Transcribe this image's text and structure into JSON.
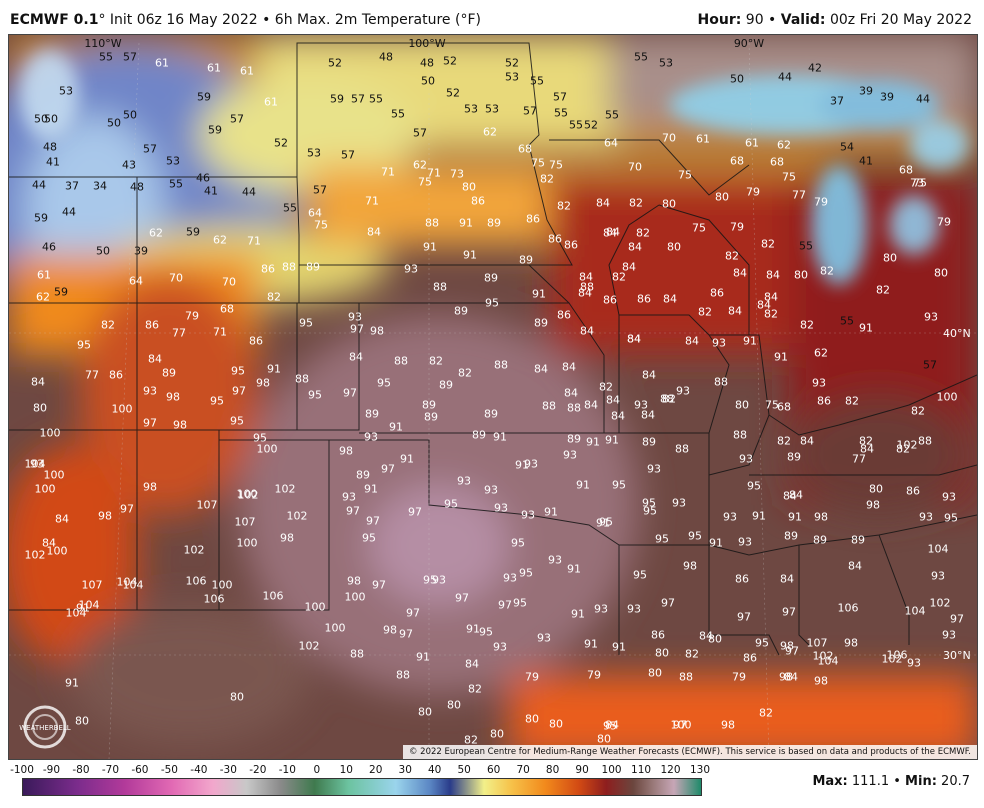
{
  "header": {
    "model": "ECMWF 0.1",
    "init": "° Init 06z 16 May 2022 • 6h Max. 2m Temperature (°F)",
    "hour_label": "Hour:",
    "hour_value": "90",
    "valid_label": "Valid:",
    "valid_value": "00z Fri 20 May 2022"
  },
  "map": {
    "longitudes": [
      "110°W",
      "100°W",
      "90°W"
    ],
    "latitudes": [
      "40°N",
      "30°N"
    ],
    "credit": "© 2022 European Centre for Medium-Range Weather Forecasts (ECMWF). This service is based on data and products of the ECMWF.",
    "logo_text": "WEATHERBELL",
    "temperature_labels": [
      {
        "t": "55"
      },
      {
        "t": "57"
      },
      {
        "t": "61"
      },
      {
        "t": "61"
      },
      {
        "t": "61"
      },
      {
        "t": "59"
      },
      {
        "t": "57"
      },
      {
        "t": "52"
      },
      {
        "t": "48"
      },
      {
        "t": "48"
      },
      {
        "t": "52"
      },
      {
        "t": "52"
      },
      {
        "t": "53"
      },
      {
        "t": "55"
      },
      {
        "t": "55"
      },
      {
        "t": "53"
      },
      {
        "t": "53"
      },
      {
        "t": "50"
      },
      {
        "t": "50"
      },
      {
        "t": "59"
      },
      {
        "t": "61"
      },
      {
        "t": "57"
      },
      {
        "t": "55"
      },
      {
        "t": "50"
      },
      {
        "t": "52"
      },
      {
        "t": "53"
      },
      {
        "t": "53"
      },
      {
        "t": "57"
      },
      {
        "t": "55"
      },
      {
        "t": "52"
      },
      {
        "t": "55"
      },
      {
        "t": "50"
      },
      {
        "t": "44"
      },
      {
        "t": "42"
      },
      {
        "t": "39"
      },
      {
        "t": "39"
      },
      {
        "t": "37"
      },
      {
        "t": "44"
      },
      {
        "t": "50"
      },
      {
        "t": "50"
      },
      {
        "t": "48"
      },
      {
        "t": "59"
      },
      {
        "t": "52"
      },
      {
        "t": "55"
      },
      {
        "t": "57"
      },
      {
        "t": "62"
      },
      {
        "t": "62"
      },
      {
        "t": "57"
      },
      {
        "t": "55"
      },
      {
        "t": "64"
      },
      {
        "t": "57"
      },
      {
        "t": "53"
      },
      {
        "t": "41"
      },
      {
        "t": "43"
      },
      {
        "t": "46"
      },
      {
        "t": "53"
      },
      {
        "t": "57"
      },
      {
        "t": "68"
      },
      {
        "t": "75"
      },
      {
        "t": "75"
      },
      {
        "t": "70"
      },
      {
        "t": "61"
      },
      {
        "t": "61"
      },
      {
        "t": "62"
      },
      {
        "t": "70"
      },
      {
        "t": "54"
      },
      {
        "t": "41"
      },
      {
        "t": "68"
      },
      {
        "t": "75"
      },
      {
        "t": "44"
      },
      {
        "t": "37"
      },
      {
        "t": "34"
      },
      {
        "t": "48"
      },
      {
        "t": "55"
      },
      {
        "t": "41"
      },
      {
        "t": "44"
      },
      {
        "t": "57"
      },
      {
        "t": "71"
      },
      {
        "t": "75"
      },
      {
        "t": "71"
      },
      {
        "t": "73"
      },
      {
        "t": "80"
      },
      {
        "t": "82"
      },
      {
        "t": "75"
      },
      {
        "t": "68"
      },
      {
        "t": "68"
      },
      {
        "t": "75"
      },
      {
        "t": "73"
      },
      {
        "t": "59"
      },
      {
        "t": "44"
      },
      {
        "t": "55"
      },
      {
        "t": "64"
      },
      {
        "t": "71"
      },
      {
        "t": "86"
      },
      {
        "t": "82"
      },
      {
        "t": "84"
      },
      {
        "t": "82"
      },
      {
        "t": "80"
      },
      {
        "t": "80"
      },
      {
        "t": "79"
      },
      {
        "t": "77"
      },
      {
        "t": "79"
      },
      {
        "t": "62"
      },
      {
        "t": "59"
      },
      {
        "t": "62"
      },
      {
        "t": "71"
      },
      {
        "t": "75"
      },
      {
        "t": "84"
      },
      {
        "t": "88"
      },
      {
        "t": "91"
      },
      {
        "t": "89"
      },
      {
        "t": "86"
      },
      {
        "t": "84"
      },
      {
        "t": "82"
      },
      {
        "t": "75"
      },
      {
        "t": "79"
      },
      {
        "t": "46"
      },
      {
        "t": "50"
      },
      {
        "t": "39"
      },
      {
        "t": "91"
      },
      {
        "t": "91"
      },
      {
        "t": "89"
      },
      {
        "t": "86"
      },
      {
        "t": "86"
      },
      {
        "t": "84"
      },
      {
        "t": "84"
      },
      {
        "t": "80"
      },
      {
        "t": "82"
      },
      {
        "t": "82"
      },
      {
        "t": "55"
      },
      {
        "t": "79"
      },
      {
        "t": "61"
      },
      {
        "t": "64"
      },
      {
        "t": "70"
      },
      {
        "t": "70"
      },
      {
        "t": "86"
      },
      {
        "t": "88"
      },
      {
        "t": "89"
      },
      {
        "t": "93"
      },
      {
        "t": "89"
      },
      {
        "t": "84"
      },
      {
        "t": "84"
      },
      {
        "t": "84"
      },
      {
        "t": "82"
      },
      {
        "t": "84"
      },
      {
        "t": "84"
      },
      {
        "t": "80"
      },
      {
        "t": "80"
      },
      {
        "t": "80"
      },
      {
        "t": "62"
      },
      {
        "t": "59"
      },
      {
        "t": "82"
      },
      {
        "t": "88"
      },
      {
        "t": "95"
      },
      {
        "t": "91"
      },
      {
        "t": "88"
      },
      {
        "t": "86"
      },
      {
        "t": "86"
      },
      {
        "t": "84"
      },
      {
        "t": "86"
      },
      {
        "t": "84"
      },
      {
        "t": "84"
      },
      {
        "t": "82"
      },
      {
        "t": "82"
      },
      {
        "t": "82"
      },
      {
        "t": "86"
      },
      {
        "t": "79"
      },
      {
        "t": "77"
      },
      {
        "t": "68"
      },
      {
        "t": "71"
      },
      {
        "t": "95"
      },
      {
        "t": "93"
      },
      {
        "t": "97"
      },
      {
        "t": "98"
      },
      {
        "t": "89"
      },
      {
        "t": "89"
      },
      {
        "t": "86"
      },
      {
        "t": "84"
      },
      {
        "t": "84"
      },
      {
        "t": "82"
      },
      {
        "t": "84"
      },
      {
        "t": "82"
      },
      {
        "t": "82"
      },
      {
        "t": "55"
      },
      {
        "t": "91"
      },
      {
        "t": "93"
      },
      {
        "t": "95"
      },
      {
        "t": "86"
      },
      {
        "t": "84"
      },
      {
        "t": "86"
      },
      {
        "t": "84"
      },
      {
        "t": "84"
      },
      {
        "t": "84"
      },
      {
        "t": "93"
      },
      {
        "t": "91"
      },
      {
        "t": "91"
      },
      {
        "t": "62"
      },
      {
        "t": "84"
      },
      {
        "t": "89"
      },
      {
        "t": "95"
      },
      {
        "t": "95"
      },
      {
        "t": "91"
      },
      {
        "t": "88"
      },
      {
        "t": "88"
      },
      {
        "t": "82"
      },
      {
        "t": "82"
      },
      {
        "t": "84"
      },
      {
        "t": "84"
      },
      {
        "t": "82"
      },
      {
        "t": "84"
      },
      {
        "t": "93"
      },
      {
        "t": "88"
      },
      {
        "t": "93"
      },
      {
        "t": "57"
      },
      {
        "t": "77"
      },
      {
        "t": "93"
      },
      {
        "t": "98"
      },
      {
        "t": "98"
      },
      {
        "t": "97"
      },
      {
        "t": "95"
      },
      {
        "t": "97"
      },
      {
        "t": "95"
      },
      {
        "t": "89"
      },
      {
        "t": "89"
      },
      {
        "t": "88"
      },
      {
        "t": "84"
      },
      {
        "t": "84"
      },
      {
        "t": "84"
      },
      {
        "t": "82"
      },
      {
        "t": "80"
      },
      {
        "t": "75"
      },
      {
        "t": "86"
      },
      {
        "t": "82"
      },
      {
        "t": "82"
      },
      {
        "t": "80"
      },
      {
        "t": "100"
      },
      {
        "t": "97"
      },
      {
        "t": "98"
      },
      {
        "t": "95"
      },
      {
        "t": "89"
      },
      {
        "t": "91"
      },
      {
        "t": "89"
      },
      {
        "t": "89"
      },
      {
        "t": "88"
      },
      {
        "t": "88"
      },
      {
        "t": "84"
      },
      {
        "t": "84"
      },
      {
        "t": "93"
      },
      {
        "t": "88"
      },
      {
        "t": "68"
      },
      {
        "t": "100"
      },
      {
        "t": "100"
      },
      {
        "t": "95"
      },
      {
        "t": "100"
      },
      {
        "t": "98"
      },
      {
        "t": "93"
      },
      {
        "t": "89"
      },
      {
        "t": "91"
      },
      {
        "t": "89"
      },
      {
        "t": "91"
      },
      {
        "t": "91"
      },
      {
        "t": "89"
      },
      {
        "t": "88"
      },
      {
        "t": "88"
      },
      {
        "t": "82"
      },
      {
        "t": "84"
      },
      {
        "t": "82"
      },
      {
        "t": "102"
      },
      {
        "t": "104"
      },
      {
        "t": "100"
      },
      {
        "t": "93"
      },
      {
        "t": "97"
      },
      {
        "t": "91"
      },
      {
        "t": "89"
      },
      {
        "t": "91"
      },
      {
        "t": "93"
      },
      {
        "t": "93"
      },
      {
        "t": "93"
      },
      {
        "t": "93"
      },
      {
        "t": "89"
      },
      {
        "t": "77"
      },
      {
        "t": "82"
      },
      {
        "t": "88"
      },
      {
        "t": "84"
      },
      {
        "t": "100"
      },
      {
        "t": "98"
      },
      {
        "t": "102"
      },
      {
        "t": "100"
      },
      {
        "t": "102"
      },
      {
        "t": "93"
      },
      {
        "t": "91"
      },
      {
        "t": "93"
      },
      {
        "t": "93"
      },
      {
        "t": "91"
      },
      {
        "t": "95"
      },
      {
        "t": "95"
      },
      {
        "t": "93"
      },
      {
        "t": "95"
      },
      {
        "t": "84"
      },
      {
        "t": "84"
      },
      {
        "t": "80"
      },
      {
        "t": "86"
      },
      {
        "t": "93"
      },
      {
        "t": "84"
      },
      {
        "t": "98"
      },
      {
        "t": "97"
      },
      {
        "t": "107"
      },
      {
        "t": "107"
      },
      {
        "t": "102"
      },
      {
        "t": "97"
      },
      {
        "t": "97"
      },
      {
        "t": "95"
      },
      {
        "t": "93"
      },
      {
        "t": "93"
      },
      {
        "t": "91"
      },
      {
        "t": "91"
      },
      {
        "t": "95"
      },
      {
        "t": "95"
      },
      {
        "t": "93"
      },
      {
        "t": "91"
      },
      {
        "t": "91"
      },
      {
        "t": "98"
      },
      {
        "t": "98"
      },
      {
        "t": "93"
      },
      {
        "t": "95"
      },
      {
        "t": "84"
      },
      {
        "t": "100"
      },
      {
        "t": "102"
      },
      {
        "t": "102"
      },
      {
        "t": "100"
      },
      {
        "t": "98"
      },
      {
        "t": "97"
      },
      {
        "t": "95"
      },
      {
        "t": "95"
      },
      {
        "t": "93"
      },
      {
        "t": "91"
      },
      {
        "t": "95"
      },
      {
        "t": "95"
      },
      {
        "t": "91"
      },
      {
        "t": "93"
      },
      {
        "t": "89"
      },
      {
        "t": "89"
      },
      {
        "t": "89"
      },
      {
        "t": "104"
      },
      {
        "t": "104"
      },
      {
        "t": "104"
      },
      {
        "t": "107"
      },
      {
        "t": "106"
      },
      {
        "t": "100"
      },
      {
        "t": "98"
      },
      {
        "t": "97"
      },
      {
        "t": "95"
      },
      {
        "t": "93"
      },
      {
        "t": "93"
      },
      {
        "t": "95"
      },
      {
        "t": "95"
      },
      {
        "t": "98"
      },
      {
        "t": "86"
      },
      {
        "t": "84"
      },
      {
        "t": "84"
      },
      {
        "t": "93"
      },
      {
        "t": "91"
      },
      {
        "t": "104"
      },
      {
        "t": "104"
      },
      {
        "t": "106"
      },
      {
        "t": "106"
      },
      {
        "t": "100"
      },
      {
        "t": "100"
      },
      {
        "t": "97"
      },
      {
        "t": "97"
      },
      {
        "t": "97"
      },
      {
        "t": "95"
      },
      {
        "t": "91"
      },
      {
        "t": "93"
      },
      {
        "t": "93"
      },
      {
        "t": "97"
      },
      {
        "t": "97"
      },
      {
        "t": "97"
      },
      {
        "t": "106"
      },
      {
        "t": "104"
      },
      {
        "t": "102"
      },
      {
        "t": "102"
      },
      {
        "t": "100"
      },
      {
        "t": "98"
      },
      {
        "t": "97"
      },
      {
        "t": "91"
      },
      {
        "t": "95"
      },
      {
        "t": "93"
      },
      {
        "t": "93"
      },
      {
        "t": "91"
      },
      {
        "t": "91"
      },
      {
        "t": "86"
      },
      {
        "t": "84"
      },
      {
        "t": "80"
      },
      {
        "t": "95"
      },
      {
        "t": "98"
      },
      {
        "t": "107"
      },
      {
        "t": "98"
      },
      {
        "t": "97"
      },
      {
        "t": "93"
      },
      {
        "t": "88"
      },
      {
        "t": "91"
      },
      {
        "t": "84"
      },
      {
        "t": "79"
      },
      {
        "t": "80"
      },
      {
        "t": "82"
      },
      {
        "t": "86"
      },
      {
        "t": "97"
      },
      {
        "t": "102"
      },
      {
        "t": "102"
      },
      {
        "t": "93"
      },
      {
        "t": "91"
      },
      {
        "t": "88"
      },
      {
        "t": "82"
      },
      {
        "t": "79"
      },
      {
        "t": "80"
      },
      {
        "t": "88"
      },
      {
        "t": "79"
      },
      {
        "t": "84"
      },
      {
        "t": "98"
      },
      {
        "t": "104"
      },
      {
        "t": "106"
      },
      {
        "t": "98"
      },
      {
        "t": "80"
      },
      {
        "t": "80"
      },
      {
        "t": "80"
      },
      {
        "t": "80"
      },
      {
        "t": "80"
      },
      {
        "t": "84"
      },
      {
        "t": "100"
      },
      {
        "t": "98"
      },
      {
        "t": "82"
      },
      {
        "t": "80"
      },
      {
        "t": "82"
      },
      {
        "t": "80"
      },
      {
        "t": "80"
      },
      {
        "t": "95"
      },
      {
        "t": "97"
      }
    ]
  },
  "legend": {
    "ticks": [
      "-100",
      "-90",
      "-80",
      "-70",
      "-60",
      "-50",
      "-40",
      "-30",
      "-20",
      "-10",
      "0",
      "10",
      "20",
      "30",
      "40",
      "50",
      "60",
      "70",
      "80",
      "90",
      "100",
      "110",
      "120",
      "130"
    ],
    "max_label": "Max:",
    "max_value": "111.1",
    "min_label": "Min:",
    "min_value": "20.7"
  }
}
